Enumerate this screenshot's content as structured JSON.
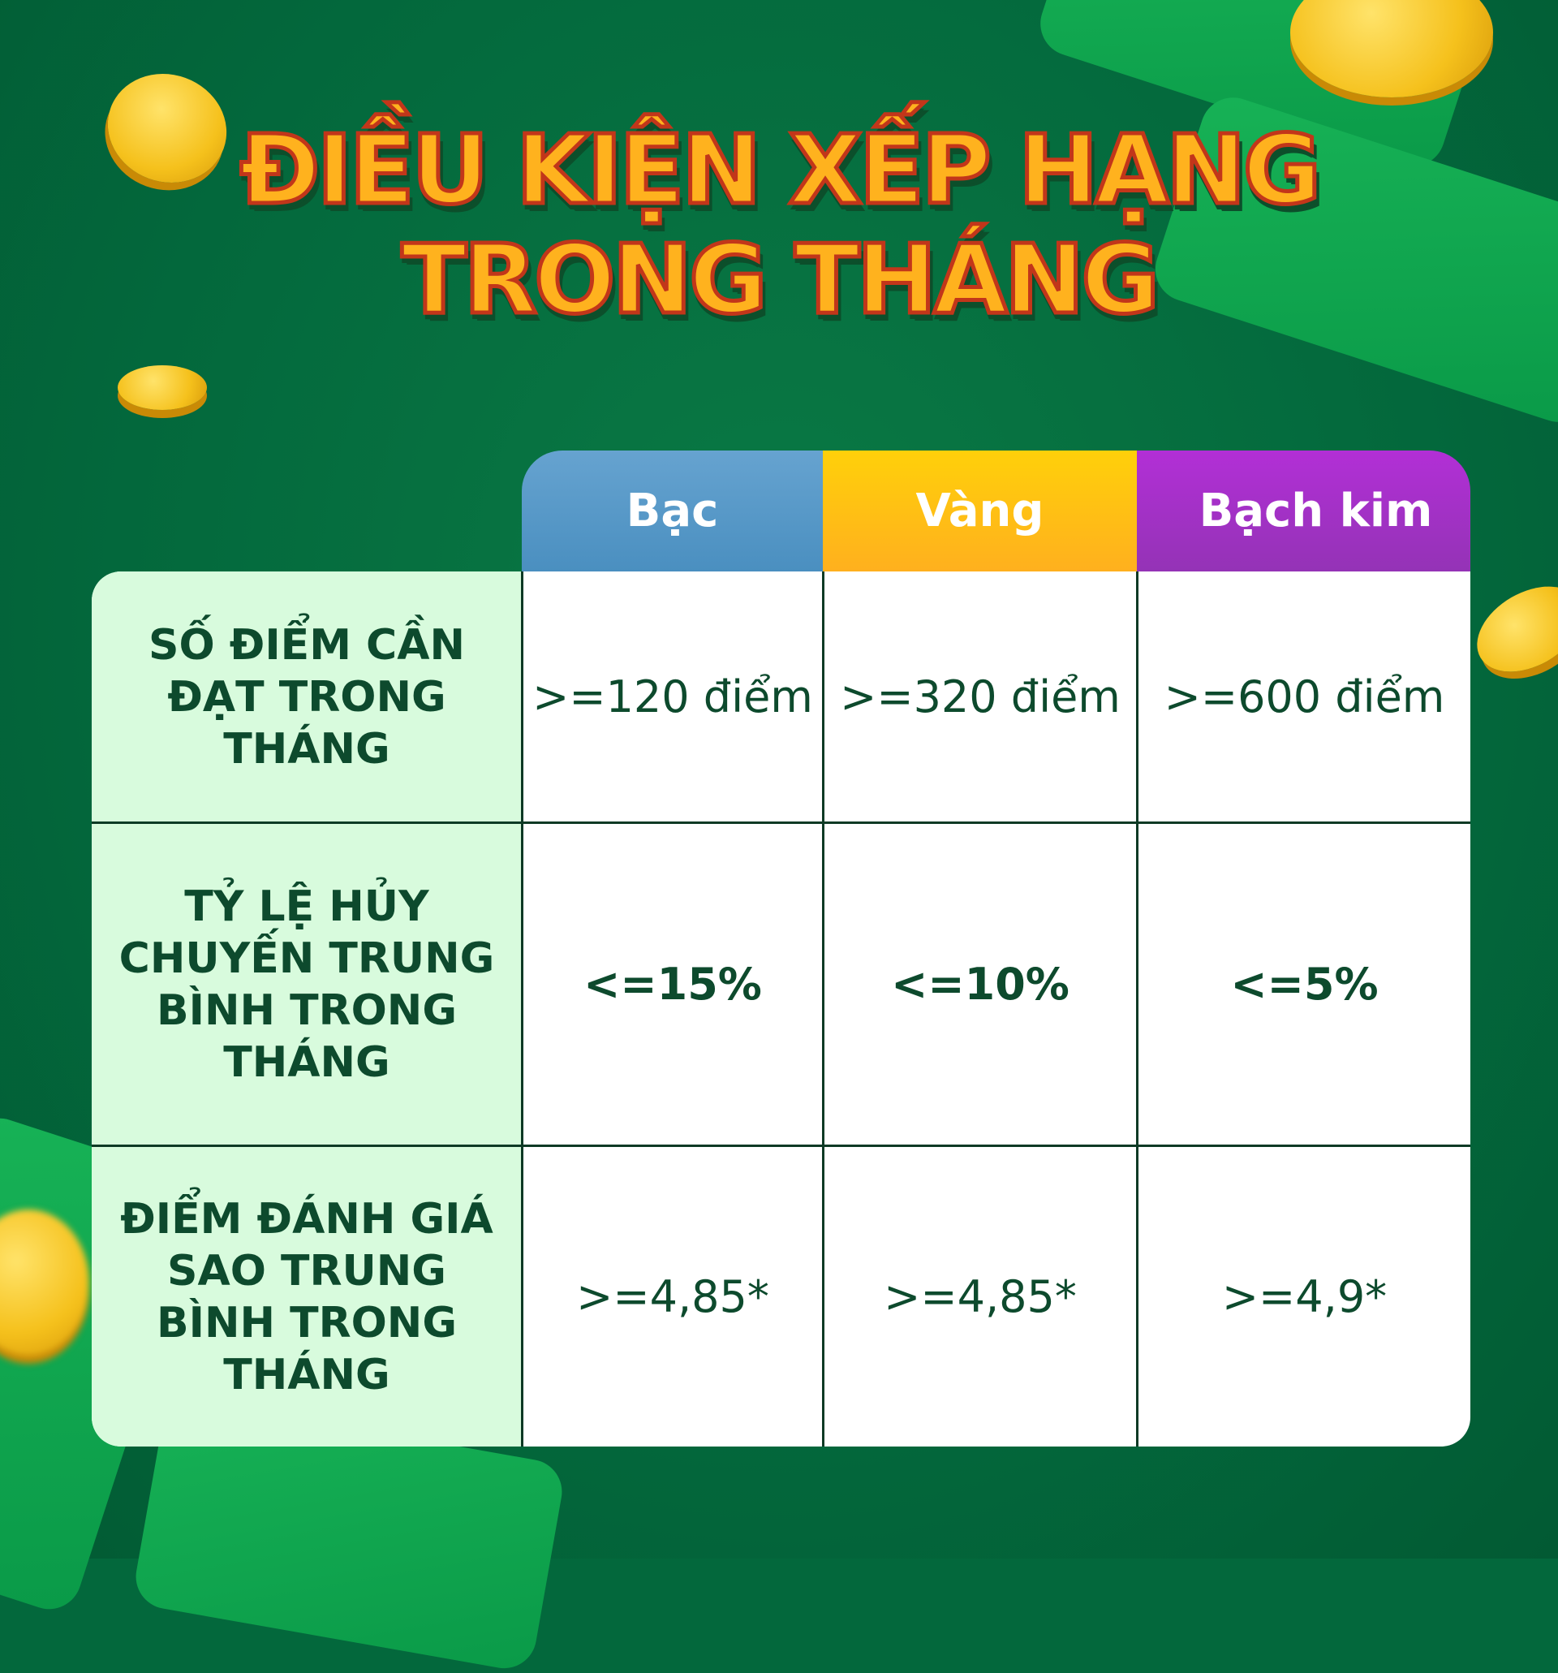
{
  "title": {
    "line1": "ĐIỀU KIỆN XẾP HẠNG",
    "line2": "TRONG THÁNG"
  },
  "colors": {
    "background": "#03683c",
    "silver": "#5b9ccb",
    "gold": "#ffc010",
    "platinum": "#a931c9",
    "label_bg": "#d8fbdd",
    "text": "#0d4a2d"
  },
  "table": {
    "columns": [
      "Bạc",
      "Vàng",
      "Bạch kim"
    ],
    "rows": [
      {
        "label": "SỐ ĐIỂM CẦN ĐẠT TRONG THÁNG",
        "values": [
          ">=120 điểm",
          ">=320 điểm",
          ">=600 điểm"
        ]
      },
      {
        "label": "TỶ LỆ HỦY CHUYẾN TRUNG BÌNH TRONG THÁNG",
        "values": [
          "<=15%",
          "<=10%",
          "<=5%"
        ]
      },
      {
        "label": "ĐIỂM ĐÁNH GIÁ SAO TRUNG BÌNH TRONG THÁNG",
        "values": [
          ">=4,85*",
          ">=4,85*",
          ">=4,9*"
        ]
      }
    ]
  }
}
